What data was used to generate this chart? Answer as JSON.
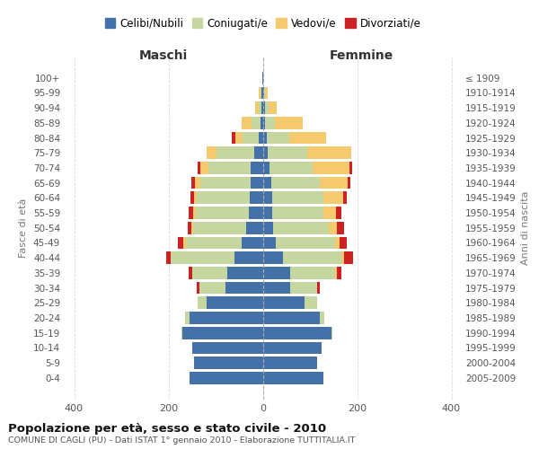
{
  "age_groups": [
    "0-4",
    "5-9",
    "10-14",
    "15-19",
    "20-24",
    "25-29",
    "30-34",
    "35-39",
    "40-44",
    "45-49",
    "50-54",
    "55-59",
    "60-64",
    "65-69",
    "70-74",
    "75-79",
    "80-84",
    "85-89",
    "90-94",
    "95-99",
    "100+"
  ],
  "birth_years": [
    "2005-2009",
    "2000-2004",
    "1995-1999",
    "1990-1994",
    "1985-1989",
    "1980-1984",
    "1975-1979",
    "1970-1974",
    "1965-1969",
    "1960-1964",
    "1955-1959",
    "1950-1954",
    "1945-1949",
    "1940-1944",
    "1935-1939",
    "1930-1934",
    "1925-1929",
    "1920-1924",
    "1915-1919",
    "1910-1914",
    "≤ 1909"
  ],
  "maschi_celibi": [
    155,
    145,
    150,
    170,
    155,
    120,
    80,
    75,
    60,
    45,
    35,
    30,
    28,
    25,
    25,
    18,
    8,
    5,
    3,
    2,
    1
  ],
  "maschi_coniugati": [
    0,
    0,
    0,
    2,
    10,
    18,
    55,
    75,
    135,
    118,
    112,
    112,
    112,
    108,
    90,
    80,
    35,
    18,
    5,
    3,
    0
  ],
  "maschi_vedovi": [
    0,
    0,
    0,
    0,
    0,
    0,
    0,
    0,
    0,
    5,
    5,
    5,
    5,
    10,
    18,
    22,
    15,
    22,
    8,
    3,
    0
  ],
  "maschi_divorziati": [
    0,
    0,
    0,
    0,
    0,
    0,
    5,
    8,
    10,
    12,
    8,
    10,
    8,
    8,
    5,
    0,
    8,
    0,
    0,
    0,
    0
  ],
  "femmine_nubili": [
    128,
    115,
    125,
    145,
    120,
    88,
    58,
    58,
    42,
    28,
    22,
    20,
    20,
    18,
    14,
    10,
    8,
    4,
    4,
    2,
    1
  ],
  "femmine_coniugate": [
    0,
    0,
    0,
    2,
    10,
    28,
    58,
    95,
    125,
    125,
    118,
    108,
    108,
    102,
    92,
    85,
    48,
    22,
    8,
    3,
    0
  ],
  "femmine_vedove": [
    0,
    0,
    0,
    0,
    0,
    0,
    0,
    5,
    5,
    10,
    18,
    28,
    42,
    60,
    78,
    92,
    78,
    58,
    18,
    5,
    0
  ],
  "femmine_divorziate": [
    0,
    0,
    0,
    0,
    0,
    0,
    5,
    8,
    20,
    15,
    15,
    10,
    8,
    5,
    5,
    0,
    0,
    0,
    0,
    0,
    0
  ],
  "color_celibi": "#4472a8",
  "color_coniugati": "#c5d6a0",
  "color_vedovi": "#f5c96e",
  "color_divorziati": "#cc2222",
  "xlim": 420,
  "title": "Popolazione per età, sesso e stato civile - 2010",
  "subtitle": "COMUNE DI CAGLI (PU) - Dati ISTAT 1° gennaio 2010 - Elaborazione TUTTITALIA.IT",
  "label_maschi": "Maschi",
  "label_femmine": "Femmine",
  "ylabel_left": "Fasce di età",
  "ylabel_right": "Anni di nascita",
  "legend": [
    "Celibi/Nubili",
    "Coniugati/e",
    "Vedovi/e",
    "Divorziati/e"
  ]
}
